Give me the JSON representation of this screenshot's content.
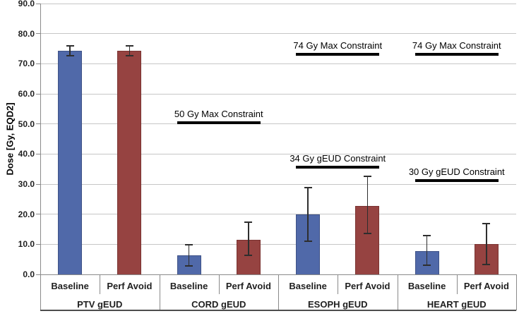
{
  "chart_data": {
    "type": "bar",
    "title": "",
    "xlabel": "",
    "ylabel": "Dose [Gy, EQD2]",
    "ylim": [
      0,
      90
    ],
    "ytick_step": 10,
    "ytick_decimals": 1,
    "grid": true,
    "legend_position": "none",
    "categories": [
      "PTV gEUD",
      "CORD gEUD",
      "ESOPH gEUD",
      "HEART gEUD"
    ],
    "series_labels": [
      "Baseline",
      "Perf Avoid"
    ],
    "series": [
      {
        "name": "Baseline",
        "values": [
          74.3,
          6.4,
          19.9,
          7.8
        ],
        "err_low": [
          72.6,
          2.9,
          11.1,
          3.0
        ],
        "err_high": [
          76.0,
          9.8,
          28.8,
          13.0
        ]
      },
      {
        "name": "Perf Avoid",
        "values": [
          74.3,
          11.6,
          22.7,
          10.1
        ],
        "err_low": [
          72.6,
          6.4,
          13.5,
          3.3
        ],
        "err_high": [
          76.0,
          17.4,
          32.5,
          16.9
        ]
      }
    ],
    "annotations": [
      {
        "label": "50 Gy Max Constraint",
        "line_gy": 50.5,
        "group": 1
      },
      {
        "label": "74 Gy Max Constraint",
        "line_gy": 73.2,
        "group": 2
      },
      {
        "label": "74 Gy Max Constraint",
        "line_gy": 73.2,
        "group": 3
      },
      {
        "label": "34 Gy gEUD Constraint",
        "line_gy": 35.7,
        "group": 2
      },
      {
        "label": "30 Gy gEUD Constraint",
        "line_gy": 31.2,
        "group": 3
      }
    ]
  },
  "colors": {
    "bar_blue": "#5069A9",
    "bar_blue_border": "#3E5287",
    "bar_red": "#964341",
    "bar_red_border": "#7A3331",
    "gridline": "#C6C6C6",
    "axis_line": "#8A8A8A",
    "frame_bottom": "#4D4D4D",
    "text": "#1F1F1F",
    "error_bar": "#2E2E2E",
    "annotation": "#000000"
  }
}
